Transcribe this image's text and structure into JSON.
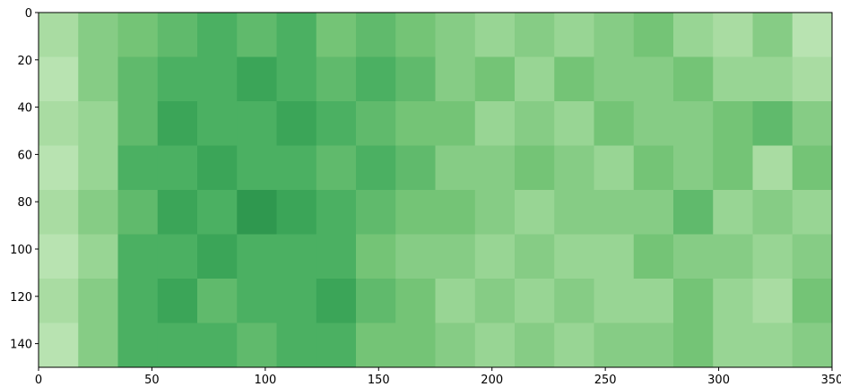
{
  "chart_data": {
    "type": "heatmap",
    "colormap": "Greens",
    "clim": [
      0,
      1
    ],
    "xlim": [
      0,
      350
    ],
    "ylim": [
      150,
      0
    ],
    "xticks": [
      0,
      50,
      100,
      150,
      200,
      250,
      300,
      350
    ],
    "yticks": [
      0,
      20,
      40,
      60,
      80,
      100,
      120,
      140
    ],
    "values": [
      [
        0.35,
        0.45,
        0.5,
        0.55,
        0.6,
        0.55,
        0.6,
        0.5,
        0.55,
        0.5,
        0.45,
        0.4,
        0.45,
        0.4,
        0.45,
        0.5,
        0.4,
        0.35,
        0.45,
        0.3
      ],
      [
        0.3,
        0.45,
        0.55,
        0.6,
        0.6,
        0.65,
        0.6,
        0.55,
        0.6,
        0.55,
        0.45,
        0.5,
        0.4,
        0.5,
        0.45,
        0.45,
        0.5,
        0.4,
        0.4,
        0.35
      ],
      [
        0.35,
        0.4,
        0.55,
        0.65,
        0.6,
        0.6,
        0.65,
        0.6,
        0.55,
        0.5,
        0.5,
        0.4,
        0.45,
        0.4,
        0.5,
        0.45,
        0.45,
        0.5,
        0.55,
        0.45
      ],
      [
        0.3,
        0.4,
        0.6,
        0.6,
        0.65,
        0.6,
        0.6,
        0.55,
        0.6,
        0.55,
        0.45,
        0.45,
        0.5,
        0.45,
        0.4,
        0.5,
        0.45,
        0.5,
        0.35,
        0.5
      ],
      [
        0.35,
        0.45,
        0.55,
        0.65,
        0.6,
        0.7,
        0.65,
        0.6,
        0.55,
        0.5,
        0.5,
        0.45,
        0.4,
        0.45,
        0.45,
        0.45,
        0.55,
        0.4,
        0.45,
        0.4
      ],
      [
        0.3,
        0.4,
        0.6,
        0.6,
        0.65,
        0.6,
        0.6,
        0.6,
        0.5,
        0.45,
        0.45,
        0.4,
        0.45,
        0.4,
        0.4,
        0.5,
        0.45,
        0.45,
        0.4,
        0.45
      ],
      [
        0.35,
        0.45,
        0.6,
        0.65,
        0.55,
        0.6,
        0.6,
        0.65,
        0.55,
        0.5,
        0.4,
        0.45,
        0.4,
        0.45,
        0.4,
        0.4,
        0.5,
        0.4,
        0.35,
        0.5
      ],
      [
        0.3,
        0.45,
        0.6,
        0.6,
        0.6,
        0.55,
        0.6,
        0.6,
        0.5,
        0.5,
        0.45,
        0.4,
        0.45,
        0.4,
        0.45,
        0.45,
        0.5,
        0.4,
        0.4,
        0.45
      ]
    ]
  }
}
